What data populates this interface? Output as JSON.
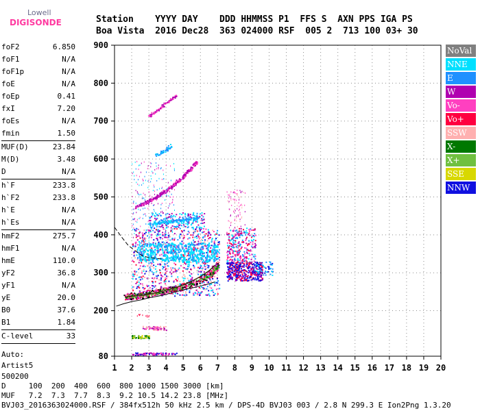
{
  "logo": {
    "line1": "Lowell",
    "line2": "DIGISONDE"
  },
  "header": {
    "line1": "Station    YYYY DAY    DDD HHMMSS P1  FFS S  AXN PPS IGA PS",
    "line2": "Boa Vista  2016 Dec28  363 024000 RSF  005 2  713 100 03+ 30"
  },
  "params": {
    "group1": [
      {
        "label": "foF2",
        "value": "6.850"
      },
      {
        "label": "foF1",
        "value": "N/A"
      },
      {
        "label": "foF1p",
        "value": "N/A"
      },
      {
        "label": "foE",
        "value": "N/A"
      },
      {
        "label": "foEp",
        "value": "0.41"
      },
      {
        "label": "fxI",
        "value": "7.20"
      },
      {
        "label": "foEs",
        "value": "N/A"
      },
      {
        "label": "fmin",
        "value": "1.50"
      }
    ],
    "group2": [
      {
        "label": "MUF(D)",
        "value": "23.84"
      },
      {
        "label": "M(D)",
        "value": "3.48"
      },
      {
        "label": "D",
        "value": "N/A"
      }
    ],
    "group3": [
      {
        "label": "h`F",
        "value": "233.8"
      },
      {
        "label": "h`F2",
        "value": "233.8"
      },
      {
        "label": "h`E",
        "value": "N/A"
      },
      {
        "label": "h`Es",
        "value": "N/A"
      }
    ],
    "group4": [
      {
        "label": "hmF2",
        "value": "275.7"
      },
      {
        "label": "hmF1",
        "value": "N/A"
      },
      {
        "label": "hmE",
        "value": "110.0"
      },
      {
        "label": "yF2",
        "value": "36.8"
      },
      {
        "label": "yF1",
        "value": "N/A"
      },
      {
        "label": "yE",
        "value": "20.0"
      },
      {
        "label": "B0",
        "value": "37.6"
      },
      {
        "label": "B1",
        "value": "1.84"
      }
    ],
    "group5": [
      {
        "label": "C-level",
        "value": "33"
      }
    ],
    "notes": [
      "Auto:",
      "Artist5",
      "500200"
    ]
  },
  "legend": [
    {
      "label": "NoVal",
      "color": "#808080"
    },
    {
      "label": "NNE",
      "color": "#00e0ff"
    },
    {
      "label": "E",
      "color": "#1e90ff"
    },
    {
      "label": "W",
      "color": "#b000b0"
    },
    {
      "label": "Vo-",
      "color": "#ff40c0"
    },
    {
      "label": "Vo+",
      "color": "#ff0040"
    },
    {
      "label": "SSW",
      "color": "#ffb0b0"
    },
    {
      "label": "X-",
      "color": "#007800"
    },
    {
      "label": "X+",
      "color": "#70c040"
    },
    {
      "label": "SSE",
      "color": "#d8d800"
    },
    {
      "label": "NNW",
      "color": "#1010e0"
    }
  ],
  "footer": {
    "line1": "D     100  200  400  600  800 1000 1500 3000 [km]",
    "line2": "MUF   7.2  7.3  7.7  8.3  9.2 10.5 14.2 23.8 [MHz]",
    "line3": "BVJ03_2016363024000.RSF / 384fx512h 50 kHz 2.5 km / DPS-4D BVJ03 003 / 2.8 N 299.3 E Ion2Png 1.3.20"
  },
  "chart_data": {
    "type": "scatter",
    "xlim": [
      1,
      20
    ],
    "ylim": [
      80,
      900
    ],
    "xticks": [
      1,
      2,
      3,
      4,
      5,
      6,
      7,
      8,
      9,
      10,
      11,
      12,
      13,
      14,
      15,
      16,
      17,
      18,
      19,
      20
    ],
    "yticks": [
      80,
      200,
      300,
      400,
      500,
      600,
      700,
      800,
      900
    ],
    "grid": true,
    "traces": {
      "profile_solid": {
        "x": [
          1.1,
          1.5,
          2.0,
          2.5,
          3.0,
          3.5,
          4.0,
          4.5,
          5.0,
          5.5,
          6.0,
          6.5,
          6.85
        ],
        "y": [
          212,
          218,
          224,
          228,
          234,
          238,
          243,
          249,
          255,
          260,
          265,
          271,
          276
        ]
      },
      "profile_dashed": {
        "x": [
          1.0,
          1.4,
          1.8,
          2.2,
          2.6,
          3.0,
          3.4,
          3.8
        ],
        "y": [
          420,
          395,
          372,
          358,
          345,
          340,
          338,
          336
        ]
      },
      "trace_fit": {
        "x": [
          1.6,
          2.0,
          2.5,
          3.0,
          3.5,
          4.0,
          4.5,
          5.0,
          5.5,
          6.0,
          6.5,
          6.85
        ],
        "y": [
          236,
          238,
          240,
          243,
          248,
          254,
          260,
          268,
          278,
          290,
          305,
          320
        ]
      }
    }
  }
}
